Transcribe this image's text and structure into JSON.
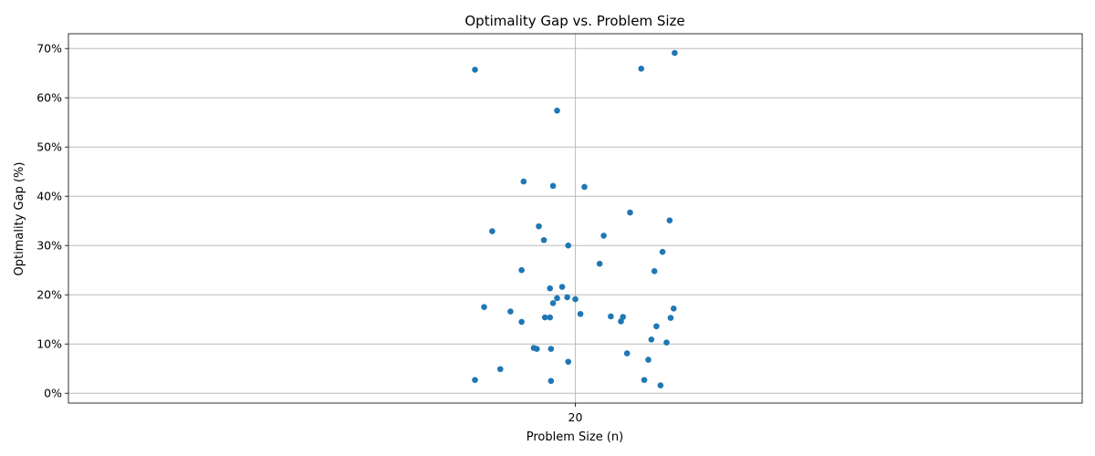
{
  "chart_data": {
    "type": "scatter",
    "title": "Optimality Gap vs. Problem Size",
    "xlabel": "Problem Size (n)",
    "ylabel": "Optimality Gap (%)",
    "xlim": [
      19.5,
      20.5
    ],
    "ylim": [
      -2,
      73
    ],
    "x_ticks": [
      20
    ],
    "x_tick_labels": [
      "20"
    ],
    "y_ticks": [
      0,
      10,
      20,
      30,
      40,
      50,
      60,
      70
    ],
    "y_tick_labels": [
      "0%",
      "10%",
      "20%",
      "30%",
      "40%",
      "50%",
      "60%",
      "70%"
    ],
    "grid": true,
    "marker_color": "#1f77b4",
    "points": [
      {
        "x": 20.098,
        "y": 69.1
      },
      {
        "x": 19.901,
        "y": 65.7
      },
      {
        "x": 20.065,
        "y": 65.9
      },
      {
        "x": 19.982,
        "y": 57.4
      },
      {
        "x": 19.949,
        "y": 43.0
      },
      {
        "x": 19.978,
        "y": 42.1
      },
      {
        "x": 20.009,
        "y": 41.9
      },
      {
        "x": 20.054,
        "y": 36.7
      },
      {
        "x": 20.093,
        "y": 35.1
      },
      {
        "x": 19.964,
        "y": 33.9
      },
      {
        "x": 19.918,
        "y": 32.9
      },
      {
        "x": 19.969,
        "y": 31.1
      },
      {
        "x": 20.028,
        "y": 32.0
      },
      {
        "x": 19.993,
        "y": 30.0
      },
      {
        "x": 20.086,
        "y": 28.7
      },
      {
        "x": 20.024,
        "y": 26.3
      },
      {
        "x": 19.947,
        "y": 25.0
      },
      {
        "x": 20.078,
        "y": 24.8
      },
      {
        "x": 19.975,
        "y": 21.3
      },
      {
        "x": 19.987,
        "y": 21.6
      },
      {
        "x": 19.982,
        "y": 19.3
      },
      {
        "x": 19.992,
        "y": 19.5
      },
      {
        "x": 20.0,
        "y": 19.1
      },
      {
        "x": 19.978,
        "y": 18.3
      },
      {
        "x": 19.91,
        "y": 17.5
      },
      {
        "x": 20.097,
        "y": 17.2
      },
      {
        "x": 19.936,
        "y": 16.6
      },
      {
        "x": 20.005,
        "y": 16.1
      },
      {
        "x": 20.035,
        "y": 15.6
      },
      {
        "x": 20.047,
        "y": 15.5
      },
      {
        "x": 19.97,
        "y": 15.4
      },
      {
        "x": 19.975,
        "y": 15.4
      },
      {
        "x": 20.094,
        "y": 15.3
      },
      {
        "x": 19.947,
        "y": 14.5
      },
      {
        "x": 20.045,
        "y": 14.6
      },
      {
        "x": 20.08,
        "y": 13.6
      },
      {
        "x": 20.075,
        "y": 10.9
      },
      {
        "x": 20.09,
        "y": 10.3
      },
      {
        "x": 19.959,
        "y": 9.2
      },
      {
        "x": 19.962,
        "y": 9.0
      },
      {
        "x": 19.976,
        "y": 9.0
      },
      {
        "x": 20.051,
        "y": 8.1
      },
      {
        "x": 20.072,
        "y": 6.8
      },
      {
        "x": 19.993,
        "y": 6.4
      },
      {
        "x": 19.926,
        "y": 4.9
      },
      {
        "x": 19.901,
        "y": 2.7
      },
      {
        "x": 20.068,
        "y": 2.7
      },
      {
        "x": 19.976,
        "y": 2.5
      },
      {
        "x": 20.084,
        "y": 1.6
      }
    ]
  }
}
